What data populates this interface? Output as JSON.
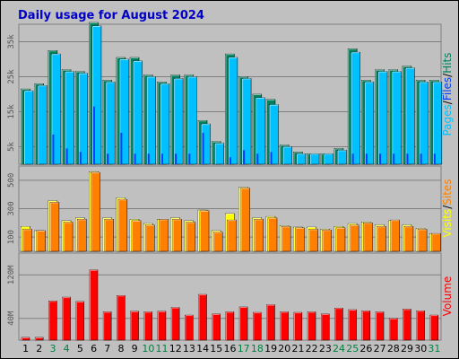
{
  "title": "Daily usage for August 2024",
  "colors": {
    "title": "#0000c8",
    "panel_bg": "#c0c0c0",
    "hits": "#00805c",
    "files": "#0040ff",
    "pages": "#00c0ff",
    "visits": "#ffff00",
    "sites": "#ff8000",
    "volume": "#ff0000",
    "weekday_label": "#000000",
    "weekend_label": "#008040"
  },
  "side_labels": {
    "panel1": [
      "Pages",
      "/",
      "Files",
      "/",
      "Hits"
    ],
    "panel2": [
      "Visits",
      "/",
      "Sites"
    ],
    "panel3": [
      "Volume"
    ]
  },
  "chart_data": {
    "type": "bar",
    "title": "Daily usage for August 2024",
    "categories": [
      "1",
      "2",
      "3",
      "4",
      "5",
      "6",
      "7",
      "8",
      "9",
      "10",
      "11",
      "12",
      "13",
      "14",
      "15",
      "16",
      "17",
      "18",
      "19",
      "20",
      "21",
      "22",
      "23",
      "24",
      "25",
      "26",
      "27",
      "28",
      "29",
      "30",
      "31"
    ],
    "weekend_days": [
      "3",
      "4",
      "10",
      "11",
      "17",
      "18",
      "24",
      "25",
      "31"
    ],
    "grid": true,
    "panels": [
      {
        "id": "hits-files-pages",
        "ylim": [
          0,
          40000
        ],
        "yticks": [
          5000,
          15000,
          25000,
          35000
        ],
        "ytick_labels": [
          "5k",
          "15k",
          "25k",
          "35k"
        ],
        "series": [
          {
            "name": "Hits",
            "values": [
              21500,
              23000,
              32500,
              27000,
              26500,
              40500,
              24000,
              30500,
              30500,
              25500,
              23500,
              25500,
              25500,
              12500,
              6500,
              31500,
              25000,
              20000,
              18500,
              5500,
              3500,
              3000,
              3000,
              4500,
              33000,
              24000,
              27000,
              27000,
              28000,
              24000,
              24000
            ]
          },
          {
            "name": "Files",
            "values": [
              0,
              0,
              8500,
              4500,
              3500,
              16500,
              3000,
              9000,
              3000,
              3000,
              3000,
              3000,
              3000,
              9000,
              0,
              2000,
              4000,
              3000,
              3500,
              0,
              0,
              0,
              0,
              0,
              3000,
              3000,
              3000,
              3000,
              3000,
              3000,
              3000
            ]
          },
          {
            "name": "Pages",
            "values": [
              21000,
              22500,
              31500,
              26500,
              26000,
              39500,
              23500,
              30000,
              29500,
              25000,
              23000,
              24500,
              25000,
              11500,
              6000,
              30500,
              24500,
              19000,
              17000,
              5000,
              3000,
              3000,
              3000,
              4000,
              32000,
              23500,
              26500,
              26500,
              27500,
              23500,
              23500
            ]
          }
        ]
      },
      {
        "id": "visits-sites",
        "ylim": [
          0,
          600
        ],
        "yticks": [
          100,
          300,
          500
        ],
        "ytick_labels": [
          "100",
          "300",
          "500"
        ],
        "series": [
          {
            "name": "Visits",
            "values": [
              175,
              145,
              355,
              215,
              235,
              560,
              235,
              375,
              225,
              195,
              225,
              235,
              215,
              290,
              145,
              265,
              450,
              235,
              245,
              180,
              170,
              170,
              155,
              175,
              195,
              205,
              185,
              215,
              185,
              160,
              125
            ]
          },
          {
            "name": "Sites",
            "values": [
              155,
              145,
              345,
              205,
              225,
              555,
              225,
              365,
              215,
              185,
              225,
              225,
              205,
              285,
              135,
              220,
              445,
              225,
              235,
              175,
              165,
              155,
              150,
              165,
              185,
              200,
              175,
              220,
              175,
              155,
              125
            ]
          }
        ]
      },
      {
        "id": "volume",
        "ylim": [
          0,
          160
        ],
        "yticks": [
          40,
          120
        ],
        "ytick_labels": [
          "40M",
          "120M"
        ],
        "series": [
          {
            "name": "Volume",
            "values": [
              5,
              5,
              72,
              79,
              71,
              129,
              52,
              82,
              53,
              52,
              53,
              60,
              46,
              84,
              48,
              52,
              61,
              51,
              65,
              52,
              51,
              52,
              48,
              59,
              56,
              54,
              52,
              40,
              57,
              54,
              46
            ]
          }
        ]
      }
    ]
  }
}
